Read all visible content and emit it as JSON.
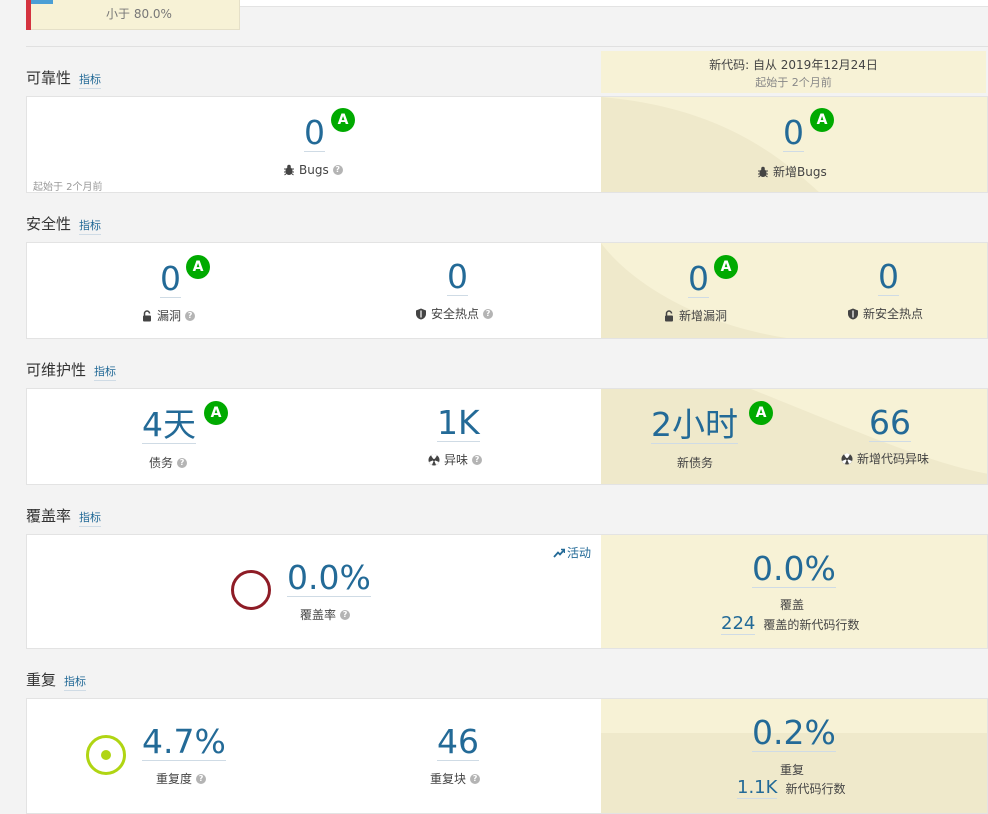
{
  "top": {
    "threshold_text": "小于 80.0%"
  },
  "new_code": {
    "since_label": "新代码: 自从 2019年12月24日",
    "started_label": "起始于 2个月前"
  },
  "sections": {
    "reliability": {
      "title": "可靠性",
      "link": "指标"
    },
    "security": {
      "title": "安全性",
      "link": "指标"
    },
    "maintainability": {
      "title": "可维护性",
      "link": "指标"
    },
    "coverage": {
      "title": "覆盖率",
      "link": "指标"
    },
    "duplications": {
      "title": "重复",
      "link": "指标"
    }
  },
  "reliability": {
    "bugs_value": "0",
    "bugs_rating": "A",
    "bugs_label": "Bugs",
    "started_note": "起始于 2个月前",
    "new_bugs_value": "0",
    "new_bugs_rating": "A",
    "new_bugs_label": "新增Bugs"
  },
  "security": {
    "vuln_value": "0",
    "vuln_rating": "A",
    "vuln_label": "漏洞",
    "hotspot_value": "0",
    "hotspot_label": "安全热点",
    "new_vuln_value": "0",
    "new_vuln_rating": "A",
    "new_vuln_label": "新增漏洞",
    "new_hotspot_value": "0",
    "new_hotspot_label": "新安全热点"
  },
  "maintainability": {
    "debt_value": "4天",
    "debt_rating": "A",
    "debt_label": "债务",
    "smells_value": "1K",
    "smells_label": "异味",
    "new_debt_value": "2小时",
    "new_debt_rating": "A",
    "new_debt_label": "新债务",
    "new_smells_value": "66",
    "new_smells_label": "新增代码异味"
  },
  "coverage": {
    "activity_label": "活动",
    "coverage_value": "0.0%",
    "coverage_label": "覆盖率",
    "new_coverage_value": "0.0%",
    "new_coverage_label": "覆盖",
    "new_lines_value": "224",
    "new_lines_label": "覆盖的新代码行数"
  },
  "duplications": {
    "dup_value": "4.7%",
    "dup_label": "重复度",
    "blocks_value": "46",
    "blocks_label": "重复块",
    "new_dup_value": "0.2%",
    "new_dup_label": "重复",
    "new_lines_value": "1.1K",
    "new_lines_label": "新代码行数"
  },
  "colors": {
    "rating_a": "#00aa00",
    "link": "#236a97",
    "new_code_bg": "#f7f2d6",
    "coverage_ring": "#8e1c26",
    "duplication_ring": "#b0d513"
  },
  "icons": {
    "bug": "bug-icon",
    "lock": "lock-icon",
    "shield": "shield-icon",
    "smell": "code-smell-icon",
    "help": "help-icon",
    "activity": "trend-icon"
  }
}
